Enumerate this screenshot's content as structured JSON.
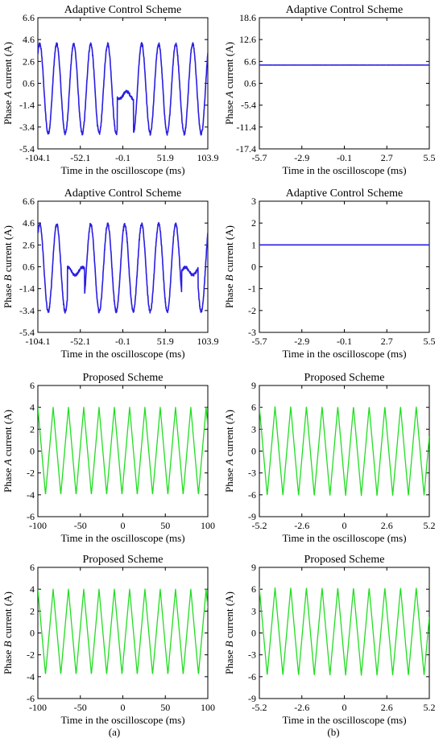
{
  "panel_labels": [
    "(a)",
    "(b)"
  ],
  "chart_data": [
    {
      "type": "line",
      "title": "Adaptive Control Scheme",
      "xlabel": "Time in the oscilloscope (ms)",
      "ylabel": {
        "pre": "Phase ",
        "phase": "A",
        "post": " current (A)"
      },
      "xlim": [
        -104.1,
        103.9
      ],
      "ylim": [
        -5.4,
        6.6
      ],
      "xticks": [
        "-104.1",
        "-52.1",
        "-0.1",
        "51.9",
        "103.9"
      ],
      "yticks": [
        "6.6",
        "4.6",
        "2.6",
        "0.6",
        "-1.4",
        "-3.4",
        "-5.4"
      ],
      "color": "#2a1ee0",
      "signal": {
        "kind": "sine-segments",
        "amplitude": 4.1,
        "offset": 0.1,
        "period_ms": 20.8,
        "segments": [
          [
            -104.1,
            -7.0
          ],
          [
            -7.0,
            13.0,
            "flat"
          ],
          [
            13.0,
            103.9
          ]
        ],
        "flat_level": -0.5
      },
      "series": [
        {
          "values": []
        }
      ]
    },
    {
      "type": "line",
      "title": "Adaptive Control Scheme",
      "xlabel": "Time in the oscilloscope (ms)",
      "ylabel": {
        "pre": "Phase ",
        "phase": "A",
        "post": " current (A)"
      },
      "xlim": [
        -5.7,
        5.5
      ],
      "ylim": [
        -17.4,
        18.6
      ],
      "xticks": [
        "-5.7",
        "-2.9",
        "-0.1",
        "2.7",
        "5.5"
      ],
      "yticks": [
        "18.6",
        "12.6",
        "6.6",
        "0.6",
        "-5.4",
        "-11.4",
        "-17.4"
      ],
      "color": "#2a1ee0",
      "signal": {
        "kind": "constant",
        "value": 5.6
      },
      "series": [
        {
          "values": []
        }
      ]
    },
    {
      "type": "line",
      "title": "Adaptive Control Scheme",
      "xlabel": "Time in the oscilloscope (ms)",
      "ylabel": {
        "pre": "Phase ",
        "phase": "B",
        "post": " current (A)"
      },
      "xlim": [
        -104.1,
        103.9
      ],
      "ylim": [
        -5.4,
        6.6
      ],
      "xticks": [
        "-104.1",
        "-52.1",
        "-0.1",
        "51.9",
        "103.9"
      ],
      "yticks": [
        "6.6",
        "4.6",
        "2.6",
        "0.6",
        "-1.4",
        "-3.4",
        "-5.4"
      ],
      "color": "#2a1ee0",
      "signal": {
        "kind": "sine-segments",
        "amplitude": 4.0,
        "offset": 0.5,
        "period_ms": 20.8,
        "segments": [
          [
            -104.1,
            -68.0
          ],
          [
            -68.0,
            -47.0,
            "flat"
          ],
          [
            -47.0,
            72.0
          ],
          [
            72.0,
            92.0,
            "flat"
          ],
          [
            92.0,
            103.9
          ]
        ],
        "flat_level": 0.2
      },
      "series": [
        {
          "values": []
        }
      ]
    },
    {
      "type": "line",
      "title": "Adaptive Control Scheme",
      "xlabel": "Time in the oscilloscope (ms)",
      "ylabel": {
        "pre": "Phase ",
        "phase": "B",
        "post": " current (A)"
      },
      "xlim": [
        -5.7,
        5.5
      ],
      "ylim": [
        -3,
        3
      ],
      "xticks": [
        "-5.7",
        "-2.9",
        "-0.1",
        "2.7",
        "5.5"
      ],
      "yticks": [
        "3",
        "2",
        "1",
        "0",
        "-1",
        "-2",
        "-3"
      ],
      "color": "#2a1ee0",
      "signal": {
        "kind": "constant",
        "value": 1.0
      },
      "series": [
        {
          "values": []
        }
      ]
    },
    {
      "type": "line",
      "title": "Proposed Scheme",
      "xlabel": "Time in the oscilloscope (ms)",
      "ylabel": {
        "pre": "Phase ",
        "phase": "A",
        "post": " current (A)"
      },
      "xlim": [
        -100,
        100
      ],
      "ylim": [
        -6,
        6
      ],
      "xticks": [
        "-100",
        "-50",
        "0",
        "50",
        "100"
      ],
      "yticks": [
        "6",
        "4",
        "2",
        "0",
        "-2",
        "-4",
        "-6"
      ],
      "color": "#22dd22",
      "signal": {
        "kind": "triangle",
        "amplitude": 4.0,
        "offset": 0.0,
        "period_ms": 18.0,
        "start_ms": -100
      },
      "series": [
        {
          "values": []
        }
      ]
    },
    {
      "type": "line",
      "title": "Proposed Scheme",
      "xlabel": "Time in the oscilloscope (ms)",
      "ylabel": {
        "pre": "Phase ",
        "phase": "A",
        "post": " current (A)"
      },
      "xlim": [
        -5.2,
        5.2
      ],
      "ylim": [
        -9,
        9
      ],
      "xticks": [
        "-5.2",
        "-2.6",
        "0",
        "2.6",
        "5.2"
      ],
      "yticks": [
        "9",
        "6",
        "3",
        "0",
        "-3",
        "-6",
        "-9"
      ],
      "color": "#22dd22",
      "signal": {
        "kind": "triangle",
        "amplitude": 6.1,
        "offset": 0.0,
        "period_ms": 0.96,
        "start_ms": -5.2
      },
      "series": [
        {
          "values": []
        }
      ]
    },
    {
      "type": "line",
      "title": "Proposed Scheme",
      "xlabel": "Time in the oscilloscope (ms)",
      "ylabel": {
        "pre": "Phase ",
        "phase": "B",
        "post": " current (A)"
      },
      "xlim": [
        -100,
        100
      ],
      "ylim": [
        -6,
        6
      ],
      "xticks": [
        "-100",
        "-50",
        "0",
        "50",
        "100"
      ],
      "yticks": [
        "6",
        "4",
        "2",
        "0",
        "-2",
        "-4",
        "-6"
      ],
      "color": "#22dd22",
      "signal": {
        "kind": "triangle",
        "amplitude": 3.9,
        "offset": 0.1,
        "period_ms": 18.0,
        "start_ms": -100
      },
      "series": [
        {
          "values": []
        }
      ]
    },
    {
      "type": "line",
      "title": "Proposed Scheme",
      "xlabel": "Time in the oscilloscope (ms)",
      "ylabel": {
        "pre": "Phase ",
        "phase": "B",
        "post": " current (A)"
      },
      "xlim": [
        -5.2,
        5.2
      ],
      "ylim": [
        -9,
        9
      ],
      "xticks": [
        "-5.2",
        "-2.6",
        "0",
        "2.6",
        "5.2"
      ],
      "yticks": [
        "9",
        "6",
        "3",
        "0",
        "-3",
        "-6",
        "-9"
      ],
      "color": "#22dd22",
      "signal": {
        "kind": "triangle",
        "amplitude": 6.0,
        "offset": 0.2,
        "period_ms": 0.96,
        "start_ms": -5.2
      },
      "series": [
        {
          "values": []
        }
      ]
    }
  ]
}
